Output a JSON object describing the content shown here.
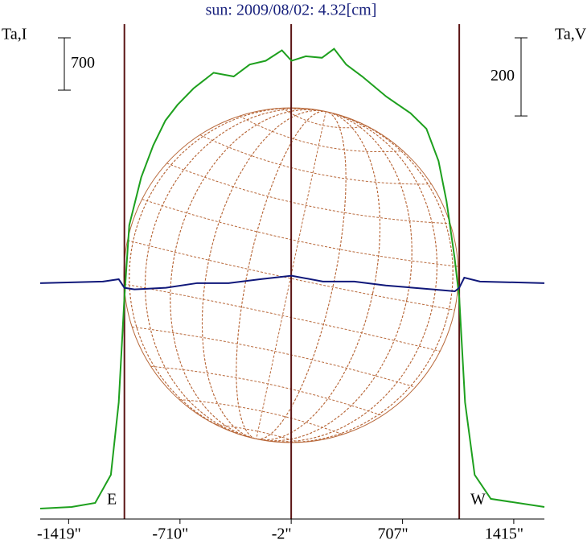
{
  "chart_data": {
    "type": "line",
    "title": "sun: 2009/08/02: 4.32[cm]",
    "y_label": "Ta,I",
    "y2_label": "Ta,V",
    "annotations": [
      "E",
      "W"
    ],
    "xlim": [
      -1600,
      1610
    ],
    "xticks": [
      {
        "value": -1419,
        "label": "-1419\""
      },
      {
        "value": -710,
        "label": "-710\""
      },
      {
        "value": -2,
        "label": "-2\""
      },
      {
        "value": 707,
        "label": "707\""
      },
      {
        "value": 1415,
        "label": "1415\""
      }
    ],
    "ylim": [
      0,
      6620
    ],
    "y2lim": [
      -604,
      663
    ],
    "scale_bars": [
      {
        "label": "700",
        "value": 700,
        "axis": "y"
      },
      {
        "label": "200",
        "value": 200,
        "axis": "y2"
      }
    ],
    "vlines": [
      -1064,
      -2,
      1068
    ],
    "vline_color": "#5a1414",
    "series": [
      {
        "name": "Ta,I",
        "color": "#1ea01e",
        "axis": "y",
        "x": [
          -1600,
          -1400,
          -1250,
          -1150,
          -1100,
          -1064,
          -1033,
          -957,
          -880,
          -803,
          -726,
          -624,
          -496,
          -368,
          -266,
          -164,
          -61,
          0,
          92,
          194,
          271,
          348,
          450,
          604,
          757,
          859,
          936,
          987,
          1038,
          1068,
          1105,
          1166,
          1269,
          1610
        ],
        "values": [
          140,
          161,
          215,
          592,
          1561,
          2960,
          3930,
          4570,
          5000,
          5330,
          5540,
          5760,
          5970,
          5920,
          6080,
          6130,
          6270,
          6130,
          6190,
          6170,
          6290,
          6080,
          5920,
          5650,
          5430,
          5220,
          4790,
          4250,
          3500,
          2960,
          1561,
          592,
          270,
          161
        ]
      },
      {
        "name": "Ta,V",
        "color": "#10187a",
        "axis": "y2",
        "x": [
          -1600,
          -1200,
          -1100,
          -1064,
          -1000,
          -800,
          -600,
          -400,
          -200,
          0,
          200,
          400,
          600,
          900,
          1040,
          1068,
          1100,
          1200,
          1610
        ],
        "values": [
          0,
          4,
          10,
          -12,
          -16,
          -12,
          0,
          0,
          10,
          19,
          4,
          4,
          -6,
          -16,
          -21,
          -12,
          14,
          4,
          0
        ]
      }
    ]
  }
}
